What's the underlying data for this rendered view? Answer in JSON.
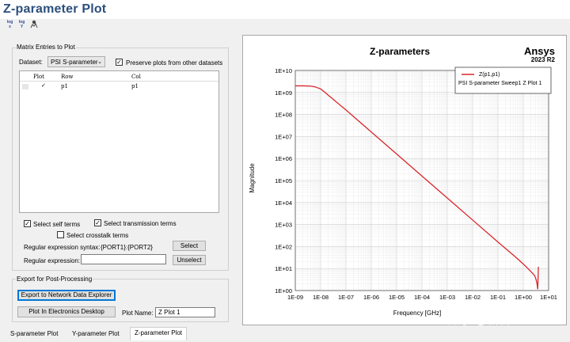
{
  "window": {
    "title": "Z-parameter Plot"
  },
  "toolbar": {
    "buttons": [
      {
        "icon": "log-x-icon",
        "line1": "log",
        "line2": "x"
      },
      {
        "icon": "log-y-icon",
        "line1": "log",
        "line2": "Y"
      },
      {
        "icon": "pan-icon",
        "line1": "",
        "line2": ""
      }
    ]
  },
  "matrix": {
    "group_title": "Matrix Entries to Plot",
    "dataset_label": "Dataset:",
    "dataset_value": "PSI S-parameter",
    "preserve_label": "Preserve plots from other datasets",
    "preserve_checked": true,
    "table": {
      "headers": [
        "Plot",
        "Row",
        "Col"
      ],
      "rows": [
        {
          "plot": "✓",
          "row": "p1",
          "col": "p1"
        }
      ]
    },
    "self_terms_label": "Select self terms",
    "transmission_terms_label": "Select transmission terms",
    "crosstalk_terms_label": "Select crosstalk terms",
    "syntax_label": "Regular expression syntax:",
    "syntax_value": "{PORT1}:{PORT2}",
    "select_button": "Select",
    "regex_label": "Regular expression:",
    "regex_value": "",
    "unselect_button": "Unselect"
  },
  "export": {
    "group_title": "Export for Post-Processing",
    "network_button": "Export to Network Data Explorer",
    "desktop_button": "Plot In Electronics Desktop",
    "plot_name_label": "Plot Name:",
    "plot_name_value": "Z Plot 1"
  },
  "chart_data": {
    "type": "line",
    "title": "Z-parameters",
    "brand": "Ansys",
    "brand_sub": "2023 R2",
    "xlabel": "Frequency [GHz]",
    "ylabel": "Magnitude",
    "xscale": "log",
    "yscale": "log",
    "xlim": [
      1e-09,
      10
    ],
    "ylim": [
      1,
      10000000000.0
    ],
    "grid": true,
    "x_ticks": [
      "1E-09",
      "1E-08",
      "1E-07",
      "1E-06",
      "1E-05",
      "1E-04",
      "1E-03",
      "1E-02",
      "1E-01",
      "1E+00",
      "1E+01"
    ],
    "y_ticks": [
      "1E+00",
      "1E+01",
      "1E+02",
      "1E+03",
      "1E+04",
      "1E+05",
      "1E+06",
      "1E+07",
      "1E+08",
      "1E+09",
      "1E+10"
    ],
    "legend": {
      "placement": "top-right",
      "entry": "Z(p1,p1)",
      "subtitle": "PSI S-parameter Sweep1  Z Plot 1"
    },
    "series": [
      {
        "name": "Z(p1,p1)",
        "color": "#d9262c",
        "x": [
          1e-09,
          2e-09,
          4e-09,
          6e-09,
          1e-08,
          1.5e-08,
          2e-08,
          3e-08,
          5e-08,
          1e-07,
          1e-06,
          1e-05,
          0.0001,
          0.001,
          0.01,
          0.1,
          0.5,
          1,
          1.6,
          2.2,
          2.8,
          3.2,
          3.5,
          3.7,
          3.8,
          3.95
        ],
        "y": [
          2000000000.0,
          2000000000.0,
          1950000000.0,
          1800000000.0,
          1450000000.0,
          1000000000.0,
          750000000.0,
          510000000.0,
          310000000.0,
          160000000.0,
          16000000.0,
          1600000.0,
          160000.0,
          16000.0,
          1600.0,
          160,
          33,
          16,
          9.5,
          6.5,
          4.8,
          3.2,
          2.0,
          1.15,
          2.6,
          12
        ]
      }
    ]
  },
  "tabs": [
    {
      "label": "S-parameter Plot",
      "active": false
    },
    {
      "label": "Y-parameter Plot",
      "active": false
    },
    {
      "label": "Z-parameter Plot",
      "active": true
    }
  ],
  "watermark": "知乎 @新科益"
}
